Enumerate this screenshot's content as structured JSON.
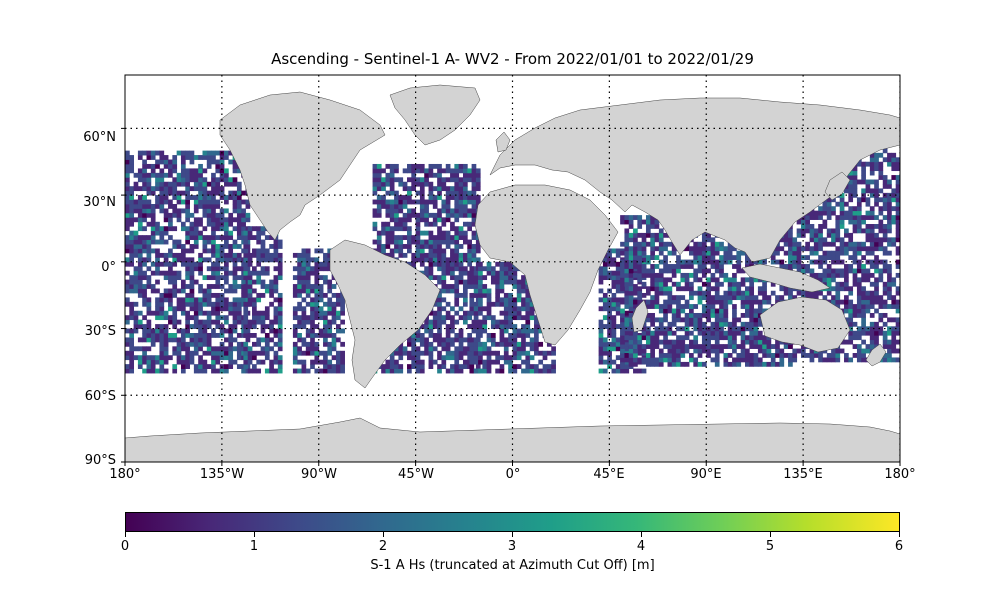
{
  "map": {
    "title": "Ascending - Sentinel-1 A- WV2 - From 2022/01/01 to 2022/01/29",
    "land_color": "#d3d3d3",
    "ocean_color": "#ffffff",
    "lat_labels": [
      "60°N",
      "30°N",
      "0°",
      "30°S",
      "60°S",
      "90°S"
    ],
    "lon_labels": [
      "180°",
      "135°W",
      "90°W",
      "45°W",
      "0°",
      "45°E",
      "90°E",
      "135°E",
      "180°"
    ],
    "colorbar": {
      "label": "S-1 A Hs (truncated at Azimuth Cut Off) [m]",
      "ticks": [
        "0",
        "1",
        "2",
        "3",
        "4",
        "5",
        "6"
      ],
      "range": [
        0,
        6
      ],
      "colormap": "viridis",
      "colors": [
        "#440154",
        "#482878",
        "#3e4989",
        "#31688e",
        "#26828e",
        "#1f9e89",
        "#35b779",
        "#6ece58",
        "#b5de2b",
        "#fde725"
      ]
    },
    "data_coverage": {
      "lat_range": [
        -50,
        50
      ],
      "typical_hs_range": [
        0.3,
        2.5
      ],
      "swaths": [
        {
          "lon": [
            -180,
            -123
          ],
          "lat": [
            -50,
            50
          ]
        },
        {
          "lon": [
            -125,
            -108
          ],
          "lat": [
            -50,
            15
          ]
        },
        {
          "lon": [
            -102,
            -78
          ],
          "lat": [
            -50,
            5
          ]
        },
        {
          "lon": [
            -65,
            -15
          ],
          "lat": [
            -50,
            43
          ]
        },
        {
          "lon": [
            -20,
            20
          ],
          "lat": [
            -50,
            0
          ]
        },
        {
          "lon": [
            40,
            62
          ],
          "lat": [
            -50,
            5
          ]
        },
        {
          "lon": [
            50,
            130
          ],
          "lat": [
            -47,
            20
          ]
        },
        {
          "lon": [
            128,
            180
          ],
          "lat": [
            -45,
            50
          ]
        }
      ]
    }
  }
}
